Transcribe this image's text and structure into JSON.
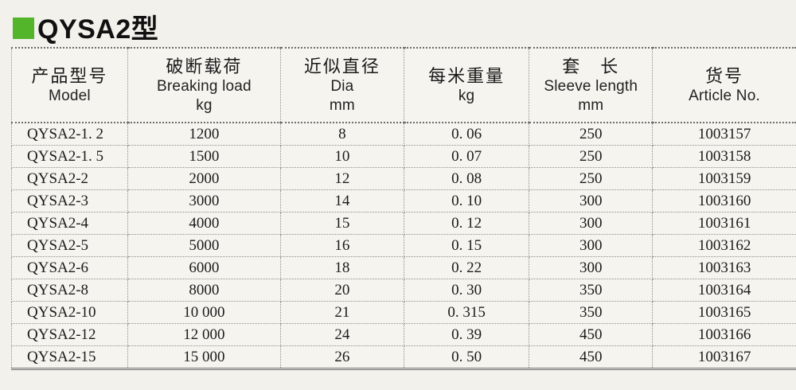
{
  "title": {
    "text": "QYSA2型",
    "bullet_color": "#53b52a"
  },
  "table": {
    "headers": [
      {
        "zh": "产品型号",
        "en": "Model",
        "unit": ""
      },
      {
        "zh": "破断载荷",
        "en": "Breaking load",
        "unit": "kg"
      },
      {
        "zh": "近似直径",
        "en": "Dia",
        "unit": "mm"
      },
      {
        "zh": "每米重量",
        "en": "",
        "unit": "kg"
      },
      {
        "zh": "套　长",
        "en": "Sleeve length",
        "unit": "mm"
      },
      {
        "zh": "货号",
        "en": "Article No.",
        "unit": ""
      }
    ],
    "rows": [
      [
        "QYSA2-1. 2",
        "1200",
        "8",
        "0. 06",
        "250",
        "1003157"
      ],
      [
        "QYSA2-1. 5",
        "1500",
        "10",
        "0. 07",
        "250",
        "1003158"
      ],
      [
        "QYSA2-2",
        "2000",
        "12",
        "0. 08",
        "250",
        "1003159"
      ],
      [
        "QYSA2-3",
        "3000",
        "14",
        "0. 10",
        "300",
        "1003160"
      ],
      [
        "QYSA2-4",
        "4000",
        "15",
        "0. 12",
        "300",
        "1003161"
      ],
      [
        "QYSA2-5",
        "5000",
        "16",
        "0. 15",
        "300",
        "1003162"
      ],
      [
        "QYSA2-6",
        "6000",
        "18",
        "0. 22",
        "300",
        "1003163"
      ],
      [
        "QYSA2-8",
        "8000",
        "20",
        "0. 30",
        "350",
        "1003164"
      ],
      [
        "QYSA2-10",
        "10 000",
        "21",
        "0. 315",
        "350",
        "1003165"
      ],
      [
        "QYSA2-12",
        "12 000",
        "24",
        "0. 39",
        "450",
        "1003166"
      ],
      [
        "QYSA2-15",
        "15 000",
        "26",
        "0. 50",
        "450",
        "1003167"
      ]
    ]
  }
}
